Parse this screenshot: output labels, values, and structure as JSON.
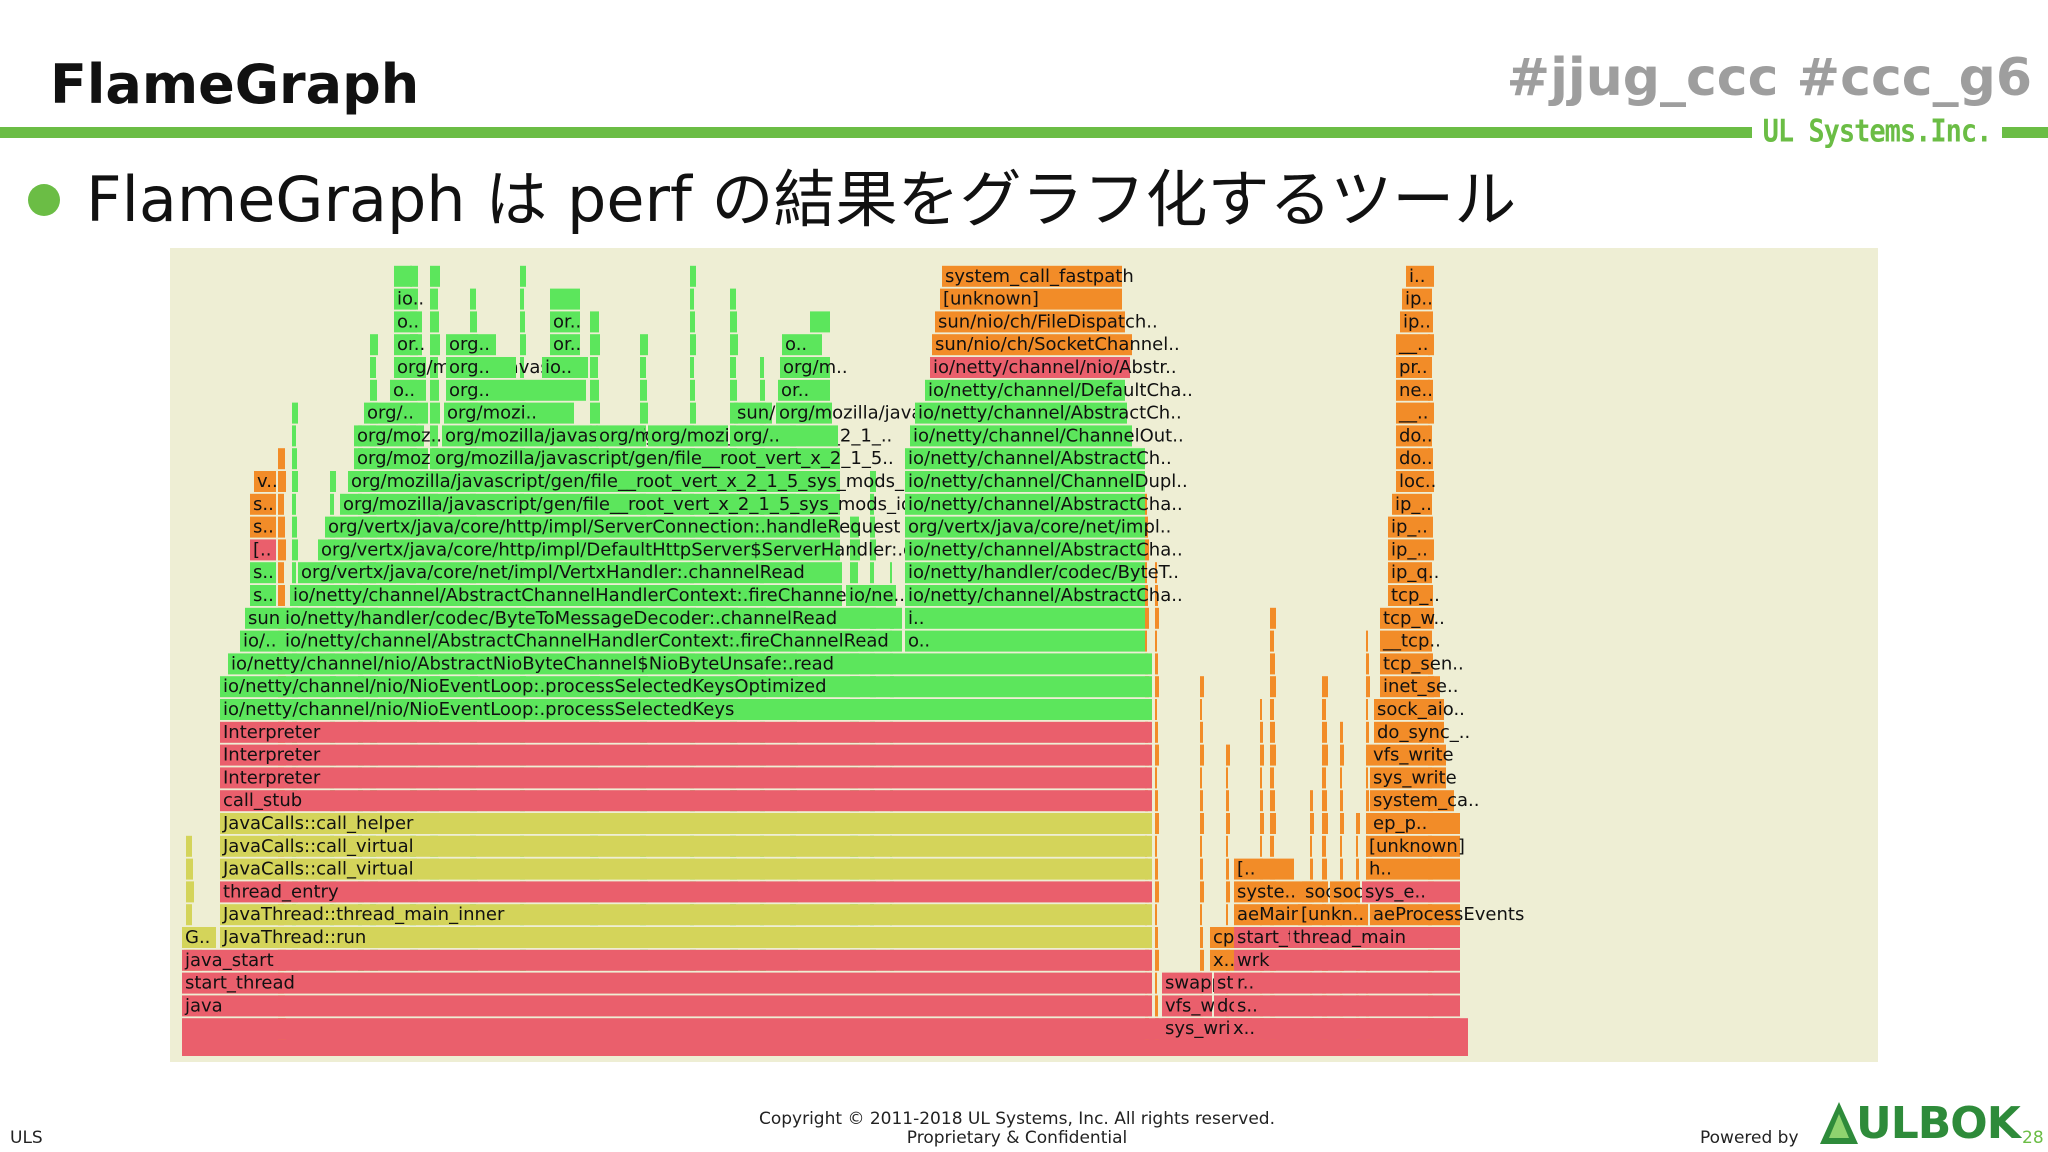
{
  "slide": {
    "title": "FlameGraph",
    "hashtags": "#jjug_ccc  #ccc_g6",
    "company_logo": "UL Systems.Inc.",
    "bullet": "FlameGraph は perf の結果をグラフ化するツール"
  },
  "footer": {
    "left": "ULS",
    "copyright": "Copyright © 2011-2018 UL Systems, Inc.  All rights reserved.",
    "confidential": "Proprietary & Confidential",
    "powered_by": "Powered by",
    "logo": "ULBOK",
    "page": "28"
  },
  "colors": {
    "accent_green": "#6bbd45",
    "java_green": "#5ce65c",
    "jvm_yellow": "#d4d45a",
    "native_red": "#ea5f6c",
    "kernel_orange": "#f28c28",
    "graph_background": "#eeeed4"
  },
  "flamegraph": {
    "stack_depth_levels": 34,
    "labels": [
      "java",
      "start_thread",
      "java_start",
      "G..",
      "JavaThread::run",
      "JavaThread::thread_main_inner",
      "thread_entry",
      "JavaCalls::call_virtual",
      "JavaCalls::call_virtual",
      "JavaCalls::call_helper",
      "call_stub",
      "Interpreter",
      "Interpreter",
      "Interpreter",
      "io/netty/channel/nio/NioEventLoop:.processSelectedKeys",
      "io/netty/channel/nio/NioEventLoop:.processSelectedKeysOptimized",
      "io/netty/channel/nio/AbstractNioByteChannel$NioByteUnsafe:.read",
      "io/..",
      "io/netty/channel/AbstractChannelHandlerContext:.fireChannelRead",
      "sun..",
      "io/netty/handler/codec/ByteToMessageDecoder:.channelRead",
      "s..",
      "io/netty/channel/AbstractChannelHandlerContext:.fireChannelRead",
      "io/ne..",
      "s..",
      "org/vertx/java/core/net/impl/VertxHandler:.channelRead",
      "[..",
      "org/vertx/java/core/http/impl/DefaultHttpServer$ServerHandler:.doM..",
      "s..",
      "org/vertx/java/core/http/impl/ServerConnection:.handleRequest",
      "s..",
      "org/mozilla/javascript/gen/file__root_vert_x_2_1_5_sys_mods_io_..",
      "v..",
      "org/mozilla/javascript/gen/file__root_vert_x_2_1_5_sys_mods_io..",
      "org/mozi..",
      "org/mozilla/javascript/gen/file__root_vert_x_2_1_5..",
      "org/moz..",
      "org/mozilla/javascript/gen/file__root_vert_x_2_1_..",
      "org/moz..",
      "org/mozilla/javas..",
      "org/..",
      "org/..",
      "org/mozi..",
      "sun/re..",
      "org/mozilla/javas..",
      "o..",
      "org..",
      "or..",
      "org/mozilla/javas..",
      "org..",
      "io..",
      "org/m..",
      "or..",
      "org..",
      "or..",
      "o..",
      "o..",
      "or..",
      "io..",
      "o..",
      "i..",
      "io/netty/channel/AbstractCha..",
      "io/netty/handler/codec/ByteT..",
      "io/netty/channel/AbstractCha..",
      "org/vertx/java/core/net/impl..",
      "io/netty/channel/AbstractCha..",
      "io/netty/channel/ChannelDupl..",
      "io/netty/channel/AbstractCh..",
      "io/netty/channel/ChannelOut..",
      "io/netty/channel/AbstractCh..",
      "io/netty/channel/DefaultCha..",
      "io/netty/channel/nio/Abstr..",
      "sun/nio/ch/SocketChannel..",
      "sun/nio/ch/FileDispatch..",
      "[unknown]",
      "system_call_fastpath",
      "sys_write",
      "vfs_write",
      "do_sync_write",
      "swapper",
      "sta..",
      "x..",
      "cpu..",
      "x..",
      "s..",
      "r..",
      "wrk",
      "start_thread",
      "thread_main",
      "aeMain",
      "[unkn..",
      "aeProcessEvents",
      "syste..",
      "socke..",
      "socket_wri..",
      "sys_e..",
      "[..",
      "h..",
      "[unknown]",
      "ep_p..",
      "system_ca..",
      "sys_write",
      "vfs_write",
      "do_sync_..",
      "sock_aio..",
      "inet_se..",
      "tcp_sen..",
      "__tcp..",
      "tcp_w..",
      "tcp_..",
      "ip_q..",
      "ip_..",
      "ip_..",
      "ip_..",
      "loc..",
      "do..",
      "do..",
      "__..",
      "ne..",
      "pr..",
      "__..",
      "ip..",
      "ip..",
      "i..",
      "i..",
      "t.."
    ]
  }
}
